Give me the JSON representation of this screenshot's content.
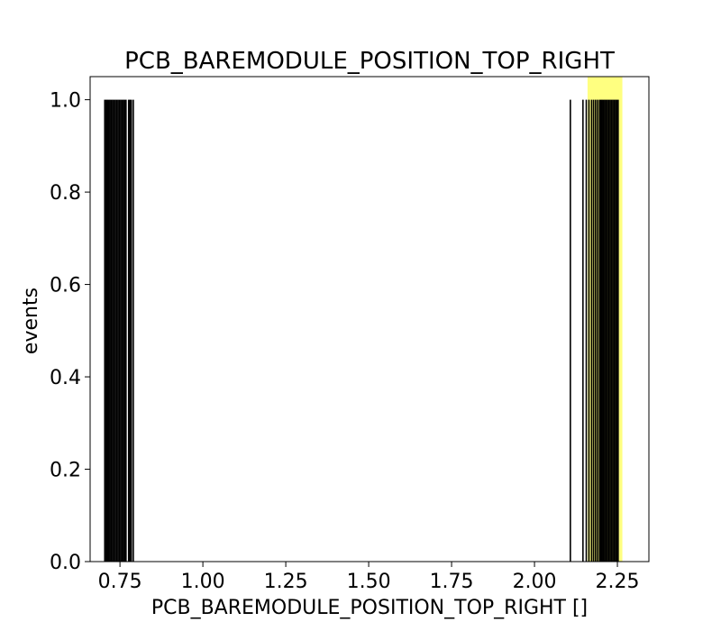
{
  "chart_data": {
    "type": "bar",
    "title": "PCB_BAREMODULE_POSITION_TOP_RIGHT",
    "xlabel": "PCB_BAREMODULE_POSITION_TOP_RIGHT []",
    "ylabel": "events",
    "xlim": [
      0.66,
      2.345
    ],
    "ylim": [
      0,
      1.05
    ],
    "xticks": [
      "0.75",
      "1.00",
      "1.25",
      "1.50",
      "1.75",
      "2.00",
      "2.25"
    ],
    "xtick_values": [
      0.75,
      1.0,
      1.25,
      1.5,
      1.75,
      2.0,
      2.25
    ],
    "yticks": [
      "0.0",
      "0.2",
      "0.4",
      "0.6",
      "0.8",
      "1.0"
    ],
    "ytick_values": [
      0.0,
      0.2,
      0.4,
      0.6,
      0.8,
      1.0
    ],
    "bar_color": "#000000",
    "highlight_band": {
      "x_range": [
        2.16,
        2.265
      ],
      "color": "#ffff80"
    },
    "bars": [
      {
        "x": 0.704,
        "y": 1
      },
      {
        "x": 0.708,
        "y": 1
      },
      {
        "x": 0.712,
        "y": 1
      },
      {
        "x": 0.716,
        "y": 1
      },
      {
        "x": 0.72,
        "y": 1
      },
      {
        "x": 0.724,
        "y": 1
      },
      {
        "x": 0.728,
        "y": 1
      },
      {
        "x": 0.732,
        "y": 1
      },
      {
        "x": 0.736,
        "y": 1
      },
      {
        "x": 0.74,
        "y": 1
      },
      {
        "x": 0.744,
        "y": 1
      },
      {
        "x": 0.748,
        "y": 1
      },
      {
        "x": 0.752,
        "y": 1
      },
      {
        "x": 0.756,
        "y": 1
      },
      {
        "x": 0.76,
        "y": 1
      },
      {
        "x": 0.764,
        "y": 1
      },
      {
        "x": 0.768,
        "y": 1
      },
      {
        "x": 0.776,
        "y": 1
      },
      {
        "x": 0.78,
        "y": 1
      },
      {
        "x": 0.784,
        "y": 1
      },
      {
        "x": 0.79,
        "y": 1
      },
      {
        "x": 2.108,
        "y": 1
      },
      {
        "x": 2.146,
        "y": 1
      },
      {
        "x": 2.156,
        "y": 1
      },
      {
        "x": 2.164,
        "y": 1
      },
      {
        "x": 2.172,
        "y": 1
      },
      {
        "x": 2.178,
        "y": 1
      },
      {
        "x": 2.184,
        "y": 1
      },
      {
        "x": 2.19,
        "y": 1
      },
      {
        "x": 2.196,
        "y": 1
      },
      {
        "x": 2.2,
        "y": 1
      },
      {
        "x": 2.204,
        "y": 1
      },
      {
        "x": 2.208,
        "y": 1
      },
      {
        "x": 2.212,
        "y": 1
      },
      {
        "x": 2.216,
        "y": 1
      },
      {
        "x": 2.22,
        "y": 1
      },
      {
        "x": 2.224,
        "y": 1
      },
      {
        "x": 2.228,
        "y": 1
      },
      {
        "x": 2.232,
        "y": 1
      },
      {
        "x": 2.236,
        "y": 1
      },
      {
        "x": 2.24,
        "y": 1
      },
      {
        "x": 2.244,
        "y": 1
      },
      {
        "x": 2.248,
        "y": 1
      },
      {
        "x": 2.252,
        "y": 1
      }
    ],
    "bin_width": 0.004,
    "grid": false,
    "legend": "none"
  }
}
